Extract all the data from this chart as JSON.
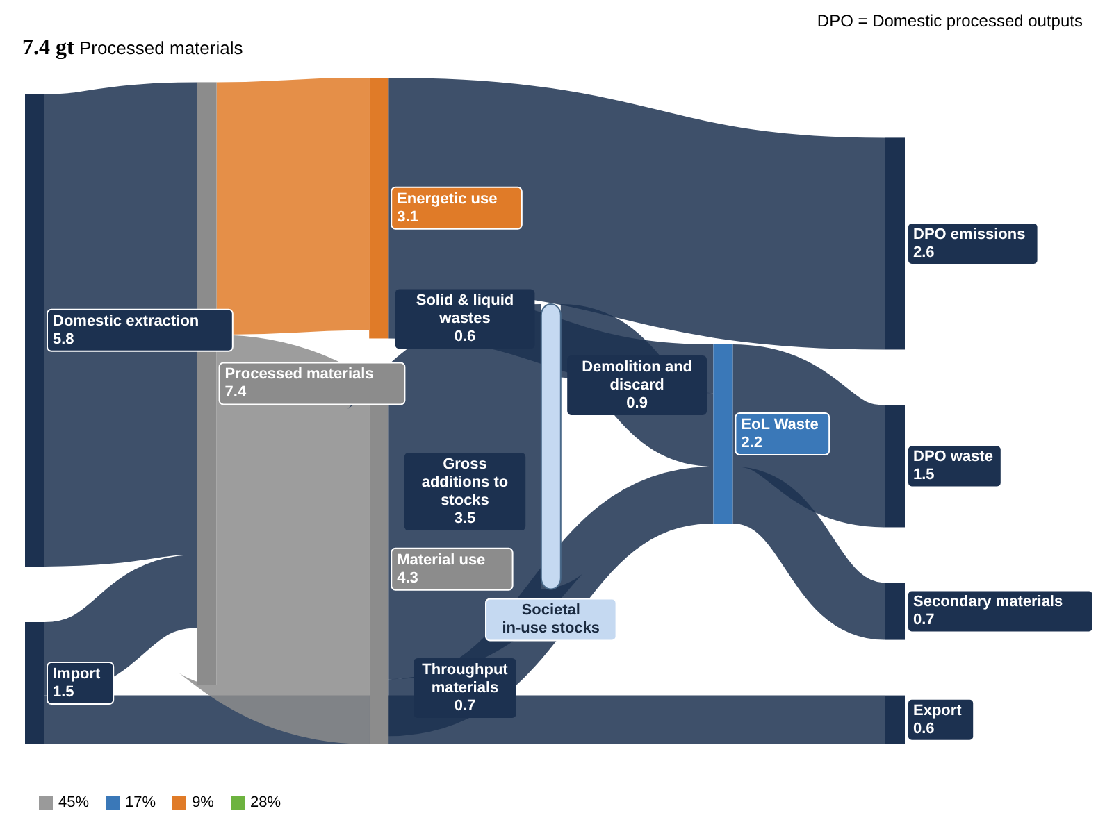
{
  "chart_data": {
    "type": "other",
    "categories": [
      "Import",
      "Domestic extraction",
      "Processed materials",
      "Energetic use",
      "Material use",
      "Export",
      "DPO emissions",
      "Societal in-use stocks",
      "EoL Waste",
      "DPO waste",
      "Secondary materials",
      "Solid & liquid wastes",
      "Throughput materials",
      "Gross additions to stocks",
      "Demolition and discard"
    ],
    "values": [
      1.5,
      5.8,
      7.4,
      3.1,
      4.3,
      0.6,
      2.6,
      null,
      2.2,
      1.5,
      0.7,
      0.6,
      0.7,
      3.5,
      0.9
    ],
    "colors": [
      "#1c3150",
      "#1c3150",
      "#8c8c8c",
      "#e07b28",
      "#8c8c8c",
      "#1c3150",
      "#1c3150",
      "#c5d9f1",
      "#3a78b8",
      "#1c3150",
      "#1c3150",
      "#1c3150",
      "#1c3150",
      "#1c3150",
      "#1c3150"
    ],
    "data_labels": true,
    "annotations": [
      "DPO = Domestic processed outputs",
      "7.4 gt",
      "Processed materials",
      "45%",
      "17%",
      "9%",
      "28%"
    ]
  }
}
